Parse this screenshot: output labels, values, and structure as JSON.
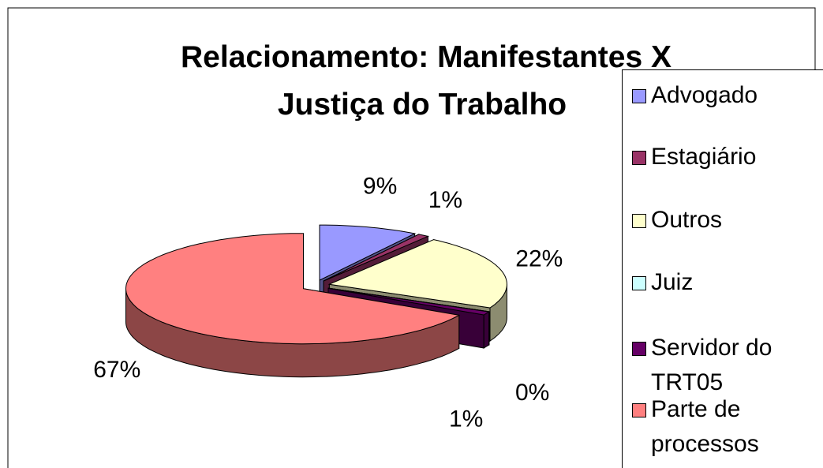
{
  "chart_data": {
    "type": "pie",
    "title": [
      "Relacionamento: Manifestantes X",
      "Justiça do Trabalho"
    ],
    "categories": [
      "Advogado",
      "Estagiário",
      "Outros",
      "Juiz",
      "Servidor do TRT05",
      "Parte de processos"
    ],
    "values": [
      9,
      1,
      22,
      0,
      1,
      67
    ],
    "value_labels": [
      "9%",
      "1%",
      "22%",
      "0%",
      "1%",
      "67%"
    ],
    "colors": [
      "#9999ff",
      "#993366",
      "#ffffcc",
      "#ccffff",
      "#660066",
      "#ff8080"
    ],
    "legend": "right"
  }
}
